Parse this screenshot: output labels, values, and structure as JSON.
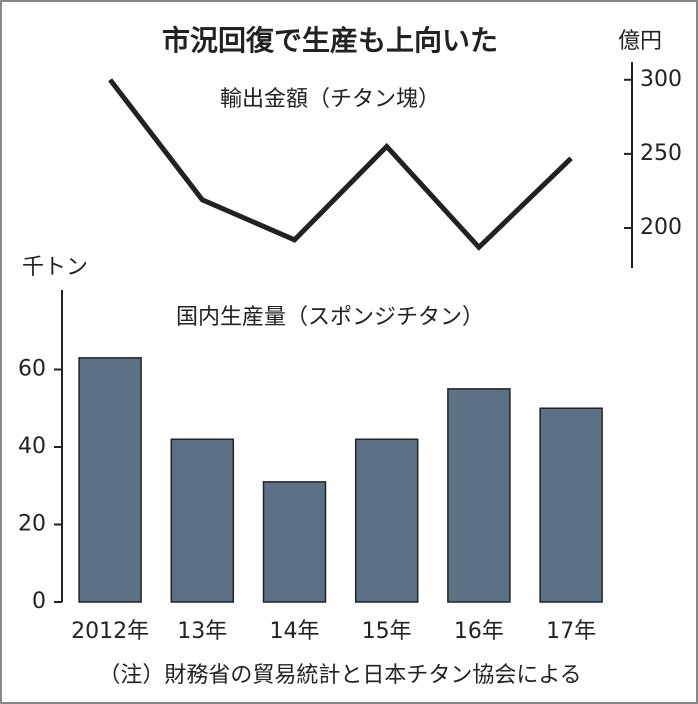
{
  "title": "市況回復で生産も上向いた",
  "note": "（注）財務省の貿易統計と日本チタン協会による",
  "chart_data": [
    {
      "type": "line",
      "title": "輸出金額（チタン塊）",
      "y_unit": "億円",
      "values": [
        300,
        219,
        192,
        255,
        187,
        247
      ],
      "color": "#222222",
      "ylim": [
        173,
        312
      ],
      "yticks": [
        200,
        250,
        300
      ]
    },
    {
      "type": "bar",
      "title": "国内生産量（スポンジチタン）",
      "y_unit": "千トン",
      "categories": [
        "2012年",
        "13年",
        "14年",
        "15年",
        "16年",
        "17年"
      ],
      "values": [
        63,
        42,
        31,
        42,
        55,
        50
      ],
      "color": "#5d7186",
      "ylim": [
        0,
        80
      ],
      "yticks": [
        0,
        20,
        40,
        60
      ]
    }
  ]
}
